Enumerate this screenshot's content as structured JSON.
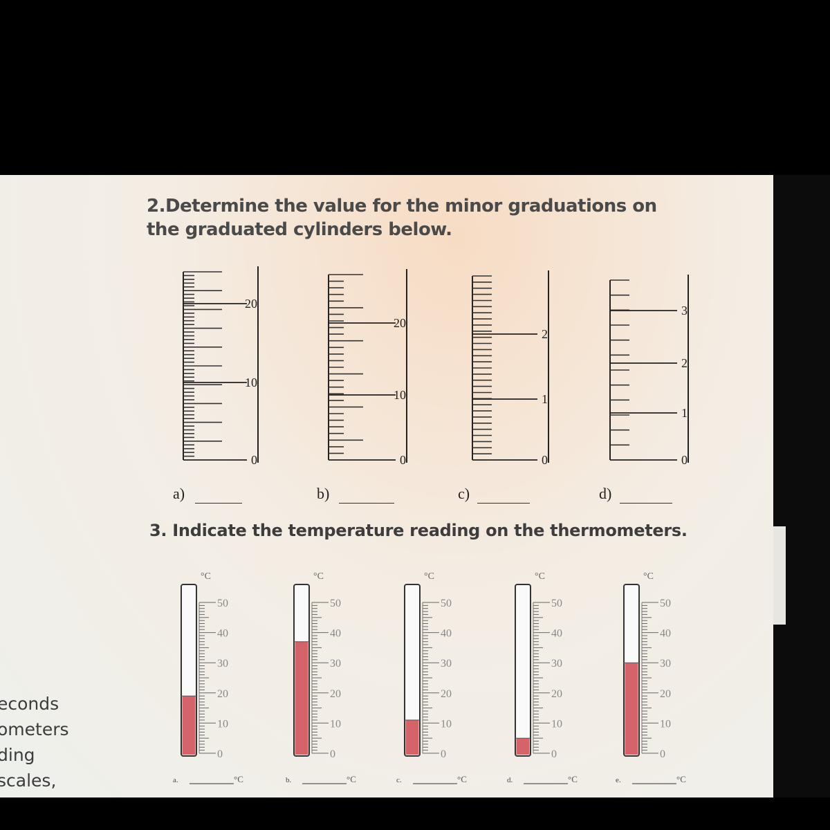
{
  "question2": {
    "text": "2.Determine the value for the minor graduations on the graduated cylinders below.",
    "cylinders": [
      {
        "label": "a)",
        "major_labels": [
          "20",
          "10",
          "0"
        ]
      },
      {
        "label": "b)",
        "major_labels": [
          "20",
          "10",
          "0"
        ]
      },
      {
        "label": "c)",
        "major_labels": [
          "2",
          "1",
          "0"
        ]
      },
      {
        "label": "d)",
        "major_labels": [
          "3",
          "2",
          "1",
          "0"
        ]
      }
    ]
  },
  "question3": {
    "text": "3. Indicate the temperature reading on the thermometers.",
    "unit_top": "°C",
    "scale_labels": [
      "50",
      "40",
      "30",
      "20",
      "10",
      "0"
    ],
    "thermometers": [
      {
        "label": "a.",
        "unit": "°C",
        "reading_celsius": 19
      },
      {
        "label": "b.",
        "unit": "°C",
        "reading_celsius": 37
      },
      {
        "label": "c.",
        "unit": "°C",
        "reading_celsius": 11
      },
      {
        "label": "d.",
        "unit": "°C",
        "reading_celsius": 5
      },
      {
        "label": "e.",
        "unit": "°C",
        "reading_celsius": 30
      }
    ]
  },
  "side_text": [
    "econds",
    "ometers",
    "ding",
    "scales,"
  ],
  "colors": {
    "mercury": "#d4636a",
    "text": "#3d3d3d"
  }
}
